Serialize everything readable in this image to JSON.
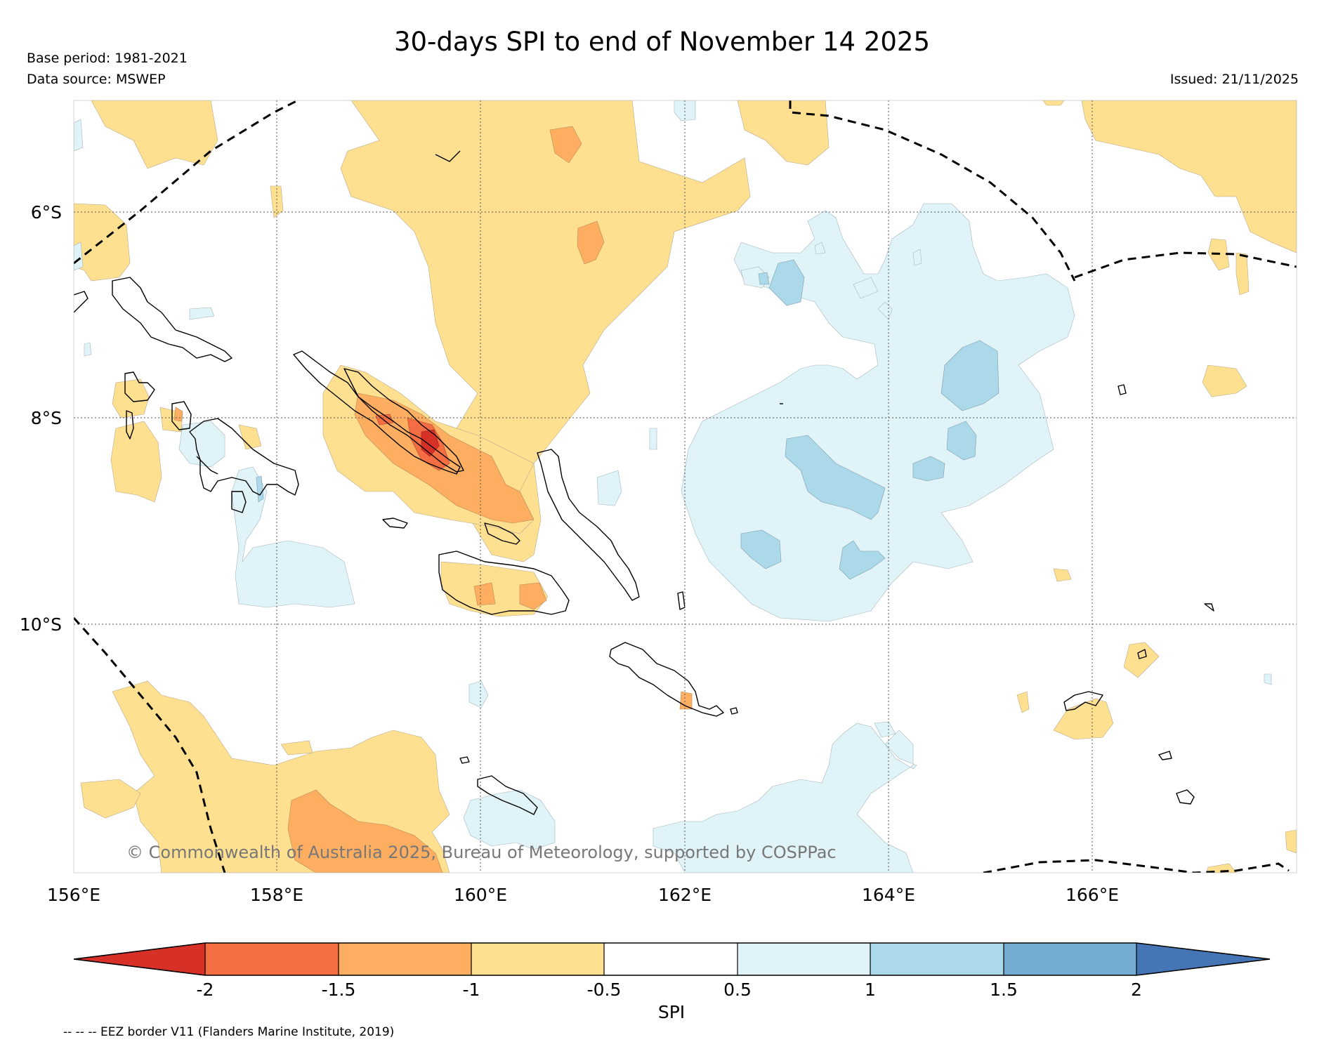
{
  "header": {
    "title": "30-days SPI to end of November 14 2025",
    "base_period": "Base period: 1981-2021",
    "data_source": "Data source: MSWEP",
    "issued": "Issued: 21/11/2025"
  },
  "map": {
    "lat_labels": [
      "6°S",
      "8°S",
      "10°S"
    ],
    "lon_labels": [
      "156°E",
      "158°E",
      "160°E",
      "162°E",
      "164°E",
      "166°E"
    ],
    "copyright": "© Commonwealth of Australia 2025, Bureau of Meteorology, supported by COSPPac"
  },
  "colorbar": {
    "label": "SPI",
    "ticks": [
      "-2",
      "-1.5",
      "-1",
      "-0.5",
      "0.5",
      "1",
      "1.5",
      "2"
    ],
    "colors": {
      "lt_-2": "#d73027",
      "-2_-1.5": "#f46d43",
      "-1.5_-1": "#fdae61",
      "-1_-0.5": "#fee090",
      "-0.5_0.5": "#ffffff",
      "0.5_1": "#e0f3f8",
      "1_1.5": "#abd9e9",
      "1.5_2": "#74add1",
      "gt_2": "#4575b4"
    }
  },
  "footnote": "-- -- -- EEZ border V11 (Flanders Marine Institute, 2019)"
}
